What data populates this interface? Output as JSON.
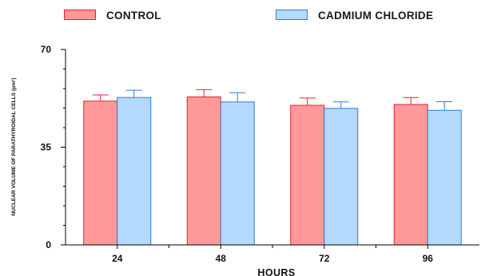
{
  "chart_data": {
    "type": "bar",
    "title": "",
    "xlabel": "HOURS",
    "ylabel": "NUCLEAR VOLUME OF PARATHYROIDAL CELLS (μm³)",
    "categories": [
      "24",
      "48",
      "72",
      "96"
    ],
    "ylim": [
      0,
      70
    ],
    "yticks": [
      "0",
      "35",
      "70"
    ],
    "grid": false,
    "legend_position": "top",
    "series": [
      {
        "name": "CONTROL",
        "fill": "#ff9999",
        "stroke": "#e8202a",
        "values": [
          51.5,
          53,
          50,
          50.3
        ],
        "errors": [
          2.2,
          2.6,
          2.6,
          2.5
        ]
      },
      {
        "name": "CADMIUM CHLORIDE",
        "fill": "#b3d9ff",
        "stroke": "#2a7fd4",
        "values": [
          52.8,
          51.2,
          48.9,
          48.2
        ],
        "errors": [
          2.6,
          3.3,
          2.3,
          3.1
        ]
      }
    ]
  }
}
